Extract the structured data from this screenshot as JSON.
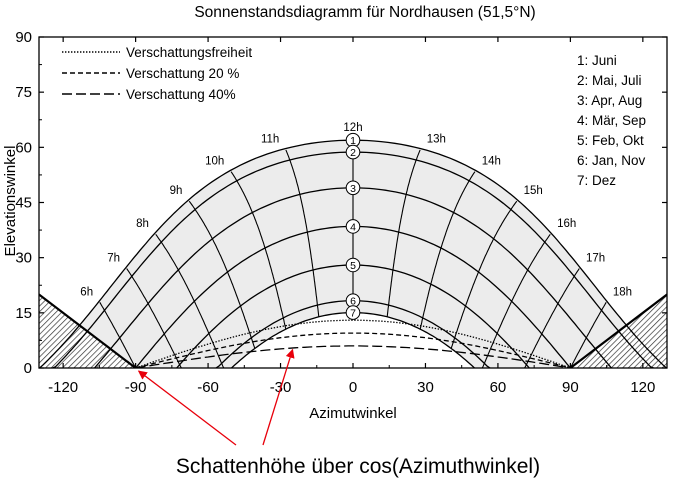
{
  "chart_data": {
    "type": "line",
    "title": "Sonnenstandsdiagramm für Nordhausen (51,5°N)",
    "xlabel": "Azimutwinkel",
    "ylabel": "Elevationswinkel",
    "xlim": [
      -130,
      130
    ],
    "ylim": [
      0,
      90
    ],
    "xticks": [
      "-120",
      "-90",
      "-60",
      "-30",
      "0",
      "30",
      "60",
      "90",
      "120"
    ],
    "yticks": [
      "0",
      "15",
      "30",
      "45",
      "60",
      "75",
      "90"
    ],
    "latitude": 51.5,
    "legend": {
      "placement": "top-left",
      "entries": [
        {
          "label": "Verschattungsfreiheit",
          "dash": "dotted"
        },
        {
          "label": "Verschattung 20 %",
          "dash": "dashed"
        },
        {
          "label": "Verschattung 40%",
          "dash": "long-dashed"
        }
      ]
    },
    "date_curves": [
      {
        "number": "1",
        "label": "1: Juni",
        "declination": 23.44
      },
      {
        "number": "2",
        "label": "2: Mai, Juli",
        "declination": 20.2
      },
      {
        "number": "3",
        "label": "3: Apr, Aug",
        "declination": 10.5
      },
      {
        "number": "4",
        "label": "4: Mär, Sep",
        "declination": 0
      },
      {
        "number": "5",
        "label": "5: Feb, Okt",
        "declination": -10.5
      },
      {
        "number": "6",
        "label": "6: Jan, Nov",
        "declination": -20.2
      },
      {
        "number": "7",
        "label": "7: Dez",
        "declination": -23.44
      }
    ],
    "hour_labels": [
      "6h",
      "7h",
      "8h",
      "9h",
      "10h",
      "11h",
      "12h",
      "13h",
      "14h",
      "15h",
      "16h",
      "17h",
      "18h"
    ],
    "hours": [
      6,
      7,
      8,
      9,
      10,
      11,
      12,
      13,
      14,
      15,
      16,
      17,
      18
    ],
    "horizon_obstruction": {
      "peak_elevation_deg": 20,
      "at_azimuth_deg": [
        -130,
        130
      ],
      "reaches_zero_at": [
        -90,
        90
      ]
    },
    "shading_curves": [
      {
        "label": "Verschattungsfreiheit",
        "max_elevation": 13
      },
      {
        "label": "Verschattung 20 %",
        "max_elevation": 9.5
      },
      {
        "label": "Verschattung 40%",
        "max_elevation": 6
      }
    ],
    "annotation": {
      "text": "Schattenhöhe über cos(Azimuthwinkel)",
      "color": "#e8000b",
      "arrow_targets": [
        [
          -90,
          0
        ],
        [
          -25,
          5
        ]
      ]
    },
    "grid": false
  }
}
